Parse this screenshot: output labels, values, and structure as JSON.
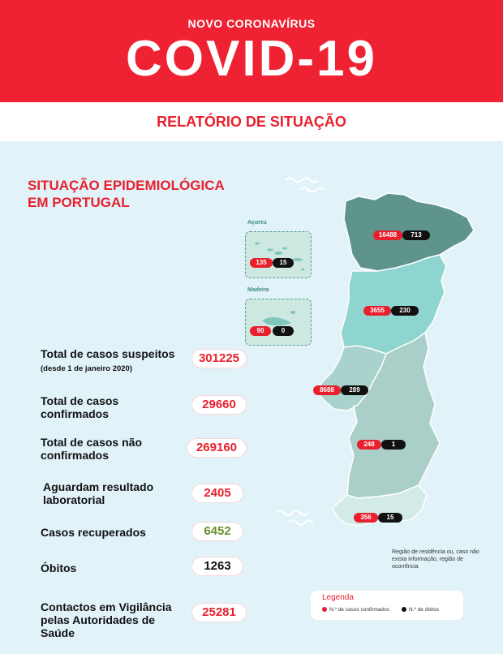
{
  "header": {
    "subtitle": "NOVO CORONAVÍRUS",
    "title": "COVID-19"
  },
  "report": {
    "title": "RELATÓRIO DE SITUAÇÃO"
  },
  "section": {
    "title": "SITUAÇÃO EPIDEMIOLÓGICA EM PORTUGAL"
  },
  "stats": {
    "suspeitos": {
      "label": "Total de casos suspeitos",
      "note": "(desde 1 de janeiro 2020)",
      "value": "301225"
    },
    "confirmados": {
      "label": "Total de casos confirmados",
      "value": "29660"
    },
    "nao_confirmados": {
      "label": "Total de casos não confirmados",
      "value": "269160"
    },
    "aguardam": {
      "label": "Aguardam resultado laboratorial",
      "value": "2405"
    },
    "recuperados": {
      "label": "Casos recuperados",
      "value": "6452"
    },
    "obitos": {
      "label": "Óbitos",
      "value": "1263"
    },
    "contactos": {
      "label": "Contactos em Vigilância pelas Autoridades de Saúde",
      "value": "25281"
    }
  },
  "regions": {
    "acores": {
      "name": "Açores",
      "cases": "135",
      "deaths": "15"
    },
    "madeira": {
      "name": "Madeira",
      "cases": "90",
      "deaths": "0"
    },
    "norte": {
      "cases": "16488",
      "deaths": "713"
    },
    "centro": {
      "cases": "3655",
      "deaths": "230"
    },
    "lisboa": {
      "cases": "8688",
      "deaths": "289"
    },
    "alentejo": {
      "cases": "248",
      "deaths": "1"
    },
    "algarve": {
      "cases": "356",
      "deaths": "15"
    }
  },
  "map_note": "Região de residência ou, caso não exista informação, região de ocorrência",
  "legend": {
    "title": "Legenda",
    "cases": "N.º de casos confirmados",
    "deaths": "N.º de óbitos"
  },
  "colors": {
    "red": "#e8202e",
    "norte": "#5e948c",
    "centro": "#8ed4cf",
    "lisboa": "#a9d2cc",
    "alentejo": "#aacfc8",
    "algarve": "#d3ebe6"
  }
}
